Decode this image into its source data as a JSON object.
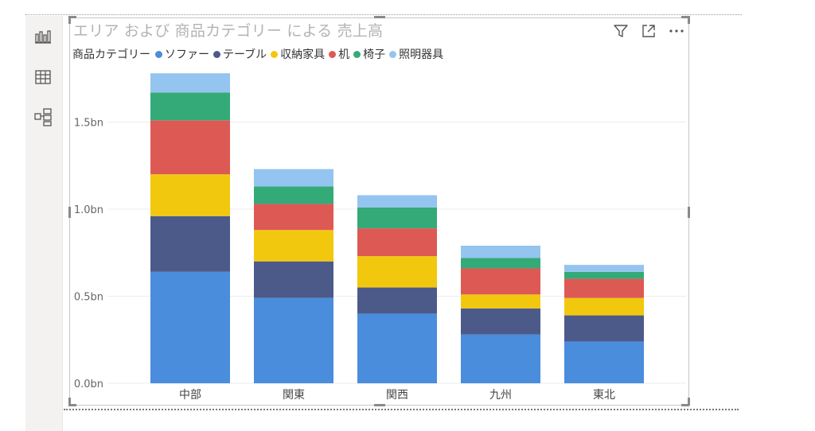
{
  "chart_data": {
    "type": "bar",
    "stacked": true,
    "title": "エリア および 商品カテゴリー による 売上高",
    "legend_title": "商品カテゴリー",
    "legend_position": "top-left",
    "categories": [
      "中部",
      "関東",
      "関西",
      "九州",
      "東北"
    ],
    "series": [
      {
        "name": "ソファー",
        "color": "#4a8ddc",
        "values": [
          0.64,
          0.49,
          0.4,
          0.28,
          0.24
        ]
      },
      {
        "name": "テーブル",
        "color": "#4c5a8a",
        "values": [
          0.32,
          0.21,
          0.15,
          0.15,
          0.15
        ]
      },
      {
        "name": "収納家具",
        "color": "#f2c80f",
        "values": [
          0.24,
          0.18,
          0.18,
          0.08,
          0.1
        ]
      },
      {
        "name": "机",
        "color": "#dd5a54",
        "values": [
          0.31,
          0.15,
          0.16,
          0.15,
          0.11
        ]
      },
      {
        "name": "椅子",
        "color": "#34aa79",
        "values": [
          0.16,
          0.1,
          0.12,
          0.06,
          0.04
        ]
      },
      {
        "name": "照明器具",
        "color": "#94c4f0",
        "values": [
          0.11,
          0.1,
          0.07,
          0.07,
          0.04
        ]
      }
    ],
    "ylim": [
      0,
      1.75
    ],
    "yticks": [
      0,
      0.5,
      1.0,
      1.5
    ],
    "ytick_labels": [
      "0.0bn",
      "0.5bn",
      "1.0bn",
      "1.5bn"
    ],
    "grid": true
  },
  "toolbar": {
    "icons": [
      "filter-icon",
      "focus-mode-icon",
      "more-options-icon"
    ]
  },
  "rail": {
    "icons": [
      "bar-chart-icon",
      "table-icon",
      "hierarchy-icon"
    ]
  }
}
